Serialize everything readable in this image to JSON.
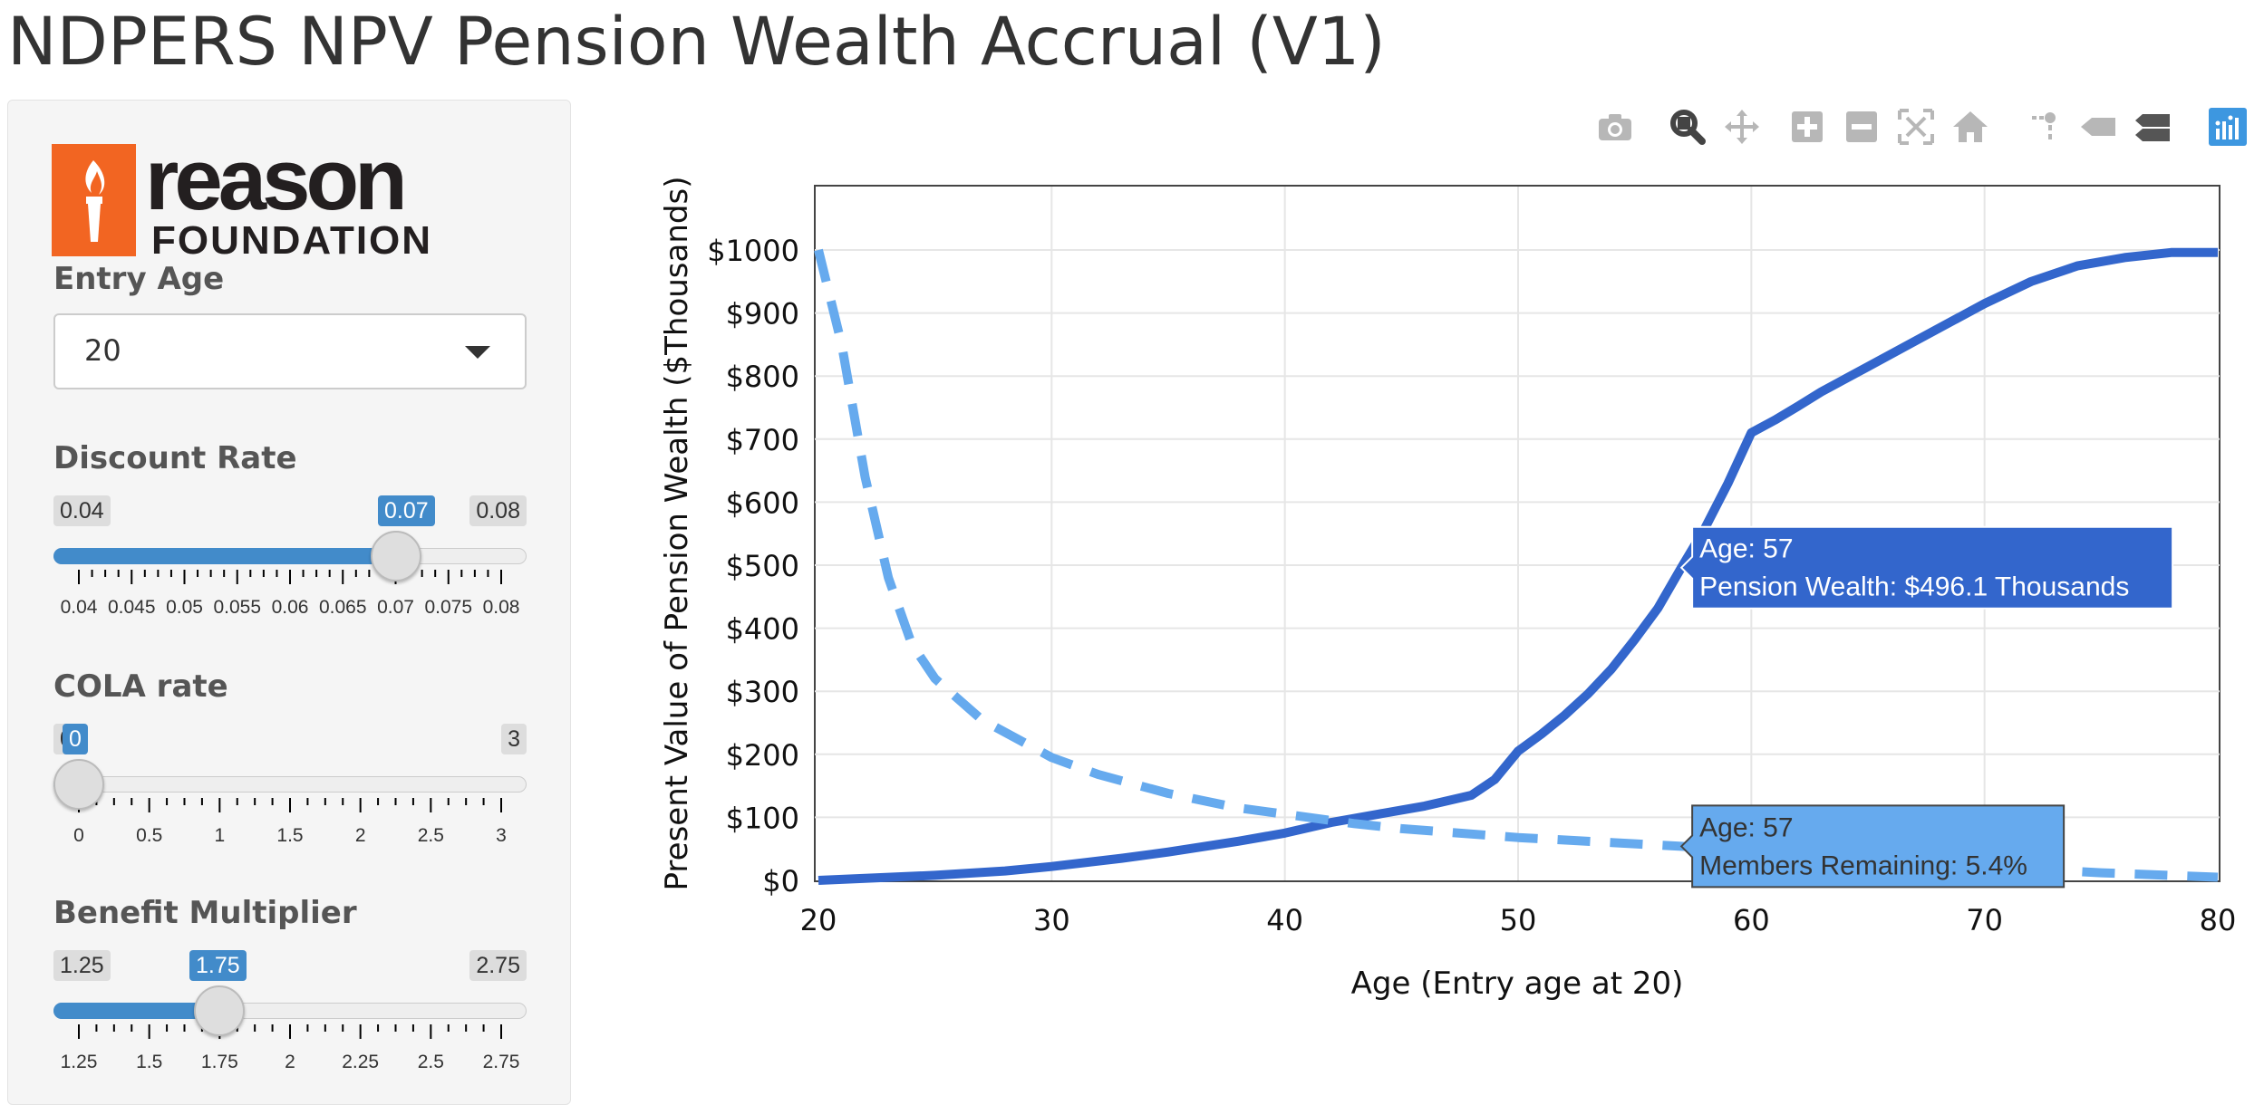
{
  "page": {
    "title": "NDPERS NPV Pension Wealth Accrual (V1)"
  },
  "logo": {
    "word_top": "reason",
    "word_bottom": "FOUNDATION",
    "icon": "torch-icon",
    "brand_color": "#f26522"
  },
  "entry_age": {
    "label": "Entry Age",
    "value": "20",
    "icon": "chevron-down-icon"
  },
  "discount_rate": {
    "label": "Discount Rate",
    "min": "0.04",
    "max": "0.08",
    "current": "0.07",
    "value": 0.07,
    "ticks": [
      "0.04",
      "0.045",
      "0.05",
      "0.055",
      "0.06",
      "0.065",
      "0.07",
      "0.075",
      "0.08"
    ]
  },
  "cola_rate": {
    "label": "COLA rate",
    "min": "0",
    "max": "3",
    "current": "0",
    "value": 0,
    "ticks": [
      "0",
      "0.5",
      "1",
      "1.5",
      "2",
      "2.5",
      "3"
    ]
  },
  "benefit_multiplier": {
    "label": "Benefit Multiplier",
    "min": "1.25",
    "max": "2.75",
    "current": "1.75",
    "value": 1.75,
    "ticks": [
      "1.25",
      "1.5",
      "1.75",
      "2",
      "2.25",
      "2.5",
      "2.75"
    ]
  },
  "modebar": {
    "icons": [
      "camera-icon",
      "zoom-icon",
      "pan-icon",
      "zoom-in-icon",
      "zoom-out-icon",
      "autoscale-icon",
      "home-icon",
      "spike-lines-icon",
      "hover-closest-icon",
      "hover-compare-icon",
      "plotly-logo-icon"
    ]
  },
  "colors": {
    "pension_line": "#3366cc",
    "members_line": "#66aaee",
    "accent": "#428bca"
  },
  "chart_data": {
    "type": "line",
    "xlabel": "Age (Entry age at 20)",
    "ylabel": "Present Value of Pension Wealth ($Thousands)",
    "xlim": [
      20,
      80
    ],
    "ylim": [
      0,
      1000
    ],
    "x_ticks": [
      "20",
      "30",
      "40",
      "50",
      "60",
      "70",
      "80"
    ],
    "y_ticks": [
      "$0",
      "$100",
      "$200",
      "$300",
      "$400",
      "$500",
      "$600",
      "$700",
      "$800",
      "$900",
      "$1000"
    ],
    "grid": true,
    "series": [
      {
        "name": "Pension Wealth",
        "style": "solid",
        "color": "#3366cc",
        "points": [
          [
            20,
            0
          ],
          [
            25,
            8
          ],
          [
            28,
            15
          ],
          [
            30,
            22
          ],
          [
            33,
            35
          ],
          [
            35,
            45
          ],
          [
            38,
            62
          ],
          [
            40,
            75
          ],
          [
            42,
            92
          ],
          [
            44,
            105
          ],
          [
            46,
            118
          ],
          [
            48,
            135
          ],
          [
            49,
            160
          ],
          [
            50,
            205
          ],
          [
            51,
            232
          ],
          [
            52,
            262
          ],
          [
            53,
            296
          ],
          [
            54,
            335
          ],
          [
            55,
            382
          ],
          [
            56,
            432
          ],
          [
            57,
            496.1
          ],
          [
            58,
            558
          ],
          [
            59,
            630
          ],
          [
            60,
            710
          ],
          [
            61,
            730
          ],
          [
            62,
            752
          ],
          [
            63,
            775
          ],
          [
            65,
            815
          ],
          [
            67,
            855
          ],
          [
            70,
            915
          ],
          [
            72,
            950
          ],
          [
            74,
            975
          ],
          [
            76,
            988
          ],
          [
            78,
            996
          ],
          [
            80,
            996
          ]
        ]
      },
      {
        "name": "Members Remaining",
        "style": "dashed",
        "color": "#66aaee",
        "points": [
          [
            20,
            1000
          ],
          [
            21,
            850
          ],
          [
            22,
            640
          ],
          [
            23,
            480
          ],
          [
            24,
            375
          ],
          [
            25,
            320
          ],
          [
            27,
            255
          ],
          [
            30,
            195
          ],
          [
            32,
            168
          ],
          [
            35,
            138
          ],
          [
            38,
            115
          ],
          [
            40,
            105
          ],
          [
            43,
            90
          ],
          [
            45,
            82
          ],
          [
            50,
            68
          ],
          [
            55,
            58
          ],
          [
            57,
            54
          ],
          [
            60,
            48
          ],
          [
            65,
            35
          ],
          [
            70,
            22
          ],
          [
            75,
            12
          ],
          [
            80,
            5
          ]
        ]
      }
    ],
    "tooltips": [
      {
        "series": "Pension Wealth",
        "x": 57,
        "y": 496.1,
        "line1": "Age: 57",
        "line2": "Pension Wealth: $496.1 Thousands"
      },
      {
        "series": "Members Remaining",
        "x": 57,
        "y": 54,
        "line1": "Age: 57",
        "line2": "Members Remaining: 5.4%"
      }
    ]
  }
}
